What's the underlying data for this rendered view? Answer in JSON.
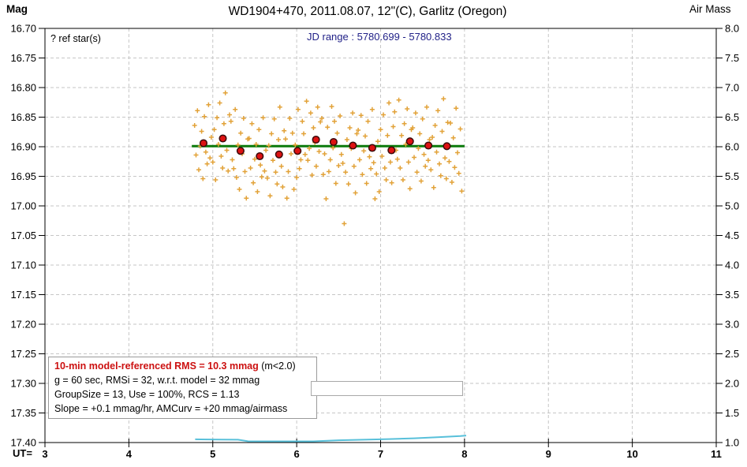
{
  "header": {
    "mag_label": "Mag",
    "title": "WD1904+470, 2011.08.07, 12\"(C), Garlitz (Oregon)",
    "airmass_label": "Air Mass"
  },
  "plot_annotations": {
    "ref_star_label": "? ref star(s)",
    "jd_range_label": "JD range : 5780.699 - 5780.833",
    "ut_prefix": "UT="
  },
  "stats_box": {
    "line1_red": "10-min model-referenced RMS = 10.3 mmag",
    "line1_black": " (m<2.0)",
    "line2": "g = 60 sec, RMSi = 32, w.r.t. model = 32 mmag",
    "line3": "GroupSize = 13, Use = 100%, RCS = 1.13",
    "line4": "Slope = +0.1 mmag/hr, AMCurv = +20 mmag/airmass"
  },
  "colors": {
    "scatter": "#e2a238",
    "binned_fill": "#dd1212",
    "binned_stroke": "#3c0a0a",
    "model_line": "#0b7a0b",
    "airmass": "#58c0da",
    "grid": "#c6c6c6",
    "axis": "#000000",
    "jd_text": "#222288",
    "stats_title_red": "#cc1111",
    "box_border": "#9a9a9a"
  },
  "chart_data": {
    "type": "scatter",
    "title": "WD1904+470, 2011.08.07, 12\"(C), Garlitz (Oregon)",
    "xlabel": "UT",
    "ylabel_left": "Mag",
    "ylabel_right": "Air Mass",
    "grid": true,
    "x_axis": {
      "range": [
        3,
        11
      ],
      "ticks": [
        "3",
        "4",
        "5",
        "6",
        "7",
        "8",
        "9",
        "10",
        "11"
      ]
    },
    "y_axis_left": {
      "range": [
        16.7,
        17.4
      ],
      "inverted": true,
      "ticks": [
        "16.70",
        "16.75",
        "16.80",
        "16.85",
        "16.90",
        "16.95",
        "17.00",
        "17.05",
        "17.10",
        "17.15",
        "17.20",
        "17.25",
        "17.30",
        "17.35",
        "17.40"
      ]
    },
    "y_axis_right": {
      "range": [
        1.0,
        8.0
      ],
      "ticks": [
        "8.0",
        "7.5",
        "7.0",
        "6.5",
        "6.0",
        "5.5",
        "5.0",
        "4.5",
        "4.0",
        "3.5",
        "3.0",
        "2.5",
        "2.0",
        "1.5",
        "1.0"
      ]
    },
    "series": [
      {
        "name": "measurements",
        "type": "scatter",
        "marker": "plus",
        "ut": [
          4.783,
          4.8,
          4.817,
          4.833,
          4.85,
          4.867,
          4.883,
          4.9,
          4.917,
          4.933,
          4.95,
          4.967,
          4.983,
          5.0,
          5.017,
          5.033,
          5.05,
          5.067,
          5.083,
          5.1,
          5.117,
          5.133,
          5.15,
          5.167,
          5.183,
          5.2,
          5.217,
          5.233,
          5.25,
          5.267,
          5.283,
          5.3,
          5.317,
          5.333,
          5.35,
          5.367,
          5.383,
          5.4,
          5.417,
          5.433,
          5.45,
          5.467,
          5.483,
          5.5,
          5.517,
          5.533,
          5.55,
          5.567,
          5.583,
          5.6,
          5.617,
          5.633,
          5.65,
          5.667,
          5.683,
          5.7,
          5.717,
          5.733,
          5.75,
          5.767,
          5.783,
          5.8,
          5.817,
          5.833,
          5.85,
          5.867,
          5.883,
          5.9,
          5.917,
          5.933,
          5.95,
          5.967,
          5.983,
          6.0,
          6.017,
          6.033,
          6.05,
          6.067,
          6.083,
          6.1,
          6.117,
          6.133,
          6.15,
          6.167,
          6.183,
          6.2,
          6.217,
          6.233,
          6.25,
          6.267,
          6.283,
          6.3,
          6.317,
          6.333,
          6.35,
          6.367,
          6.383,
          6.4,
          6.417,
          6.433,
          6.45,
          6.467,
          6.483,
          6.5,
          6.517,
          6.533,
          6.55,
          6.567,
          6.583,
          6.6,
          6.617,
          6.633,
          6.65,
          6.667,
          6.683,
          6.7,
          6.717,
          6.733,
          6.75,
          6.767,
          6.783,
          6.8,
          6.817,
          6.833,
          6.85,
          6.867,
          6.883,
          6.9,
          6.917,
          6.933,
          6.95,
          6.967,
          6.983,
          7.0,
          7.017,
          7.033,
          7.05,
          7.067,
          7.083,
          7.1,
          7.117,
          7.133,
          7.15,
          7.167,
          7.183,
          7.2,
          7.217,
          7.233,
          7.25,
          7.267,
          7.283,
          7.3,
          7.317,
          7.333,
          7.35,
          7.367,
          7.383,
          7.4,
          7.417,
          7.433,
          7.45,
          7.467,
          7.483,
          7.5,
          7.517,
          7.533,
          7.55,
          7.567,
          7.583,
          7.6,
          7.617,
          7.633,
          7.65,
          7.667,
          7.683,
          7.7,
          7.717,
          7.733,
          7.75,
          7.767,
          7.783,
          7.8,
          7.817,
          7.833,
          7.85,
          7.867,
          7.883,
          7.9,
          7.917,
          7.933,
          7.95,
          7.967
        ],
        "mag": [
          16.864,
          16.914,
          16.839,
          16.939,
          16.899,
          16.874,
          16.954,
          16.849,
          16.909,
          16.929,
          16.829,
          16.919,
          16.884,
          16.926,
          16.871,
          16.956,
          16.851,
          16.896,
          16.826,
          16.916,
          16.936,
          16.861,
          16.809,
          16.906,
          16.941,
          16.846,
          16.857,
          16.922,
          16.937,
          16.837,
          16.952,
          16.897,
          16.972,
          16.877,
          16.912,
          16.852,
          16.942,
          16.987,
          16.887,
          16.886,
          16.936,
          16.861,
          16.961,
          16.921,
          16.896,
          16.976,
          16.871,
          16.931,
          16.951,
          16.851,
          16.941,
          16.906,
          16.953,
          16.898,
          16.983,
          16.878,
          16.923,
          16.853,
          16.943,
          16.963,
          16.888,
          16.833,
          16.933,
          16.968,
          16.873,
          16.887,
          16.987,
          16.942,
          16.852,
          16.912,
          16.877,
          16.972,
          16.897,
          16.952,
          16.837,
          16.937,
          16.922,
          16.857,
          16.878,
          16.913,
          16.823,
          16.923,
          16.903,
          16.843,
          16.948,
          16.868,
          16.893,
          16.933,
          16.833,
          16.908,
          16.858,
          16.852,
          16.947,
          16.912,
          16.988,
          16.867,
          16.942,
          16.922,
          16.832,
          16.902,
          16.857,
          16.962,
          16.877,
          16.932,
          16.848,
          16.913,
          16.928,
          17.03,
          16.943,
          16.888,
          16.963,
          16.868,
          16.903,
          16.843,
          16.933,
          16.978,
          16.878,
          16.872,
          16.922,
          16.847,
          16.947,
          16.907,
          16.882,
          16.962,
          16.857,
          16.917,
          16.937,
          16.837,
          16.927,
          16.988,
          16.946,
          16.891,
          16.976,
          16.871,
          16.916,
          16.846,
          16.936,
          16.956,
          16.881,
          16.826,
          16.926,
          16.961,
          16.866,
          16.841,
          16.906,
          16.921,
          16.821,
          16.936,
          16.881,
          16.956,
          16.861,
          16.896,
          16.836,
          16.926,
          16.971,
          16.871,
          16.868,
          16.918,
          16.843,
          16.943,
          16.903,
          16.878,
          16.958,
          16.853,
          16.913,
          16.933,
          16.833,
          16.923,
          16.888,
          16.939,
          16.884,
          16.969,
          16.864,
          16.909,
          16.839,
          16.929,
          16.949,
          16.874,
          16.819,
          16.919,
          16.954,
          16.859,
          16.925,
          16.86,
          16.96,
          16.885,
          16.935,
          16.835,
          16.91,
          16.945,
          16.87,
          16.975
        ]
      },
      {
        "name": "binned",
        "type": "scatter",
        "marker": "circle",
        "ut": [
          4.89,
          5.12,
          5.33,
          5.56,
          5.79,
          6.01,
          6.23,
          6.44,
          6.67,
          6.9,
          7.13,
          7.35,
          7.57,
          7.79
        ],
        "mag": [
          16.894,
          16.886,
          16.907,
          16.916,
          16.913,
          16.907,
          16.888,
          16.892,
          16.898,
          16.902,
          16.906,
          16.891,
          16.898,
          16.899
        ]
      },
      {
        "name": "model",
        "type": "line",
        "mag": 16.899,
        "ut_start": 4.75,
        "ut_end": 8.0
      },
      {
        "name": "airmass",
        "type": "line",
        "points": [
          [
            4.79,
            1.055
          ],
          [
            5.1,
            1.05
          ],
          [
            5.3,
            1.048
          ],
          [
            5.42,
            1.022
          ],
          [
            6.2,
            1.02
          ],
          [
            6.5,
            1.038
          ],
          [
            6.8,
            1.048
          ],
          [
            7.1,
            1.058
          ],
          [
            7.4,
            1.072
          ],
          [
            7.7,
            1.092
          ],
          [
            7.95,
            1.11
          ],
          [
            8.02,
            1.118
          ]
        ]
      }
    ]
  }
}
